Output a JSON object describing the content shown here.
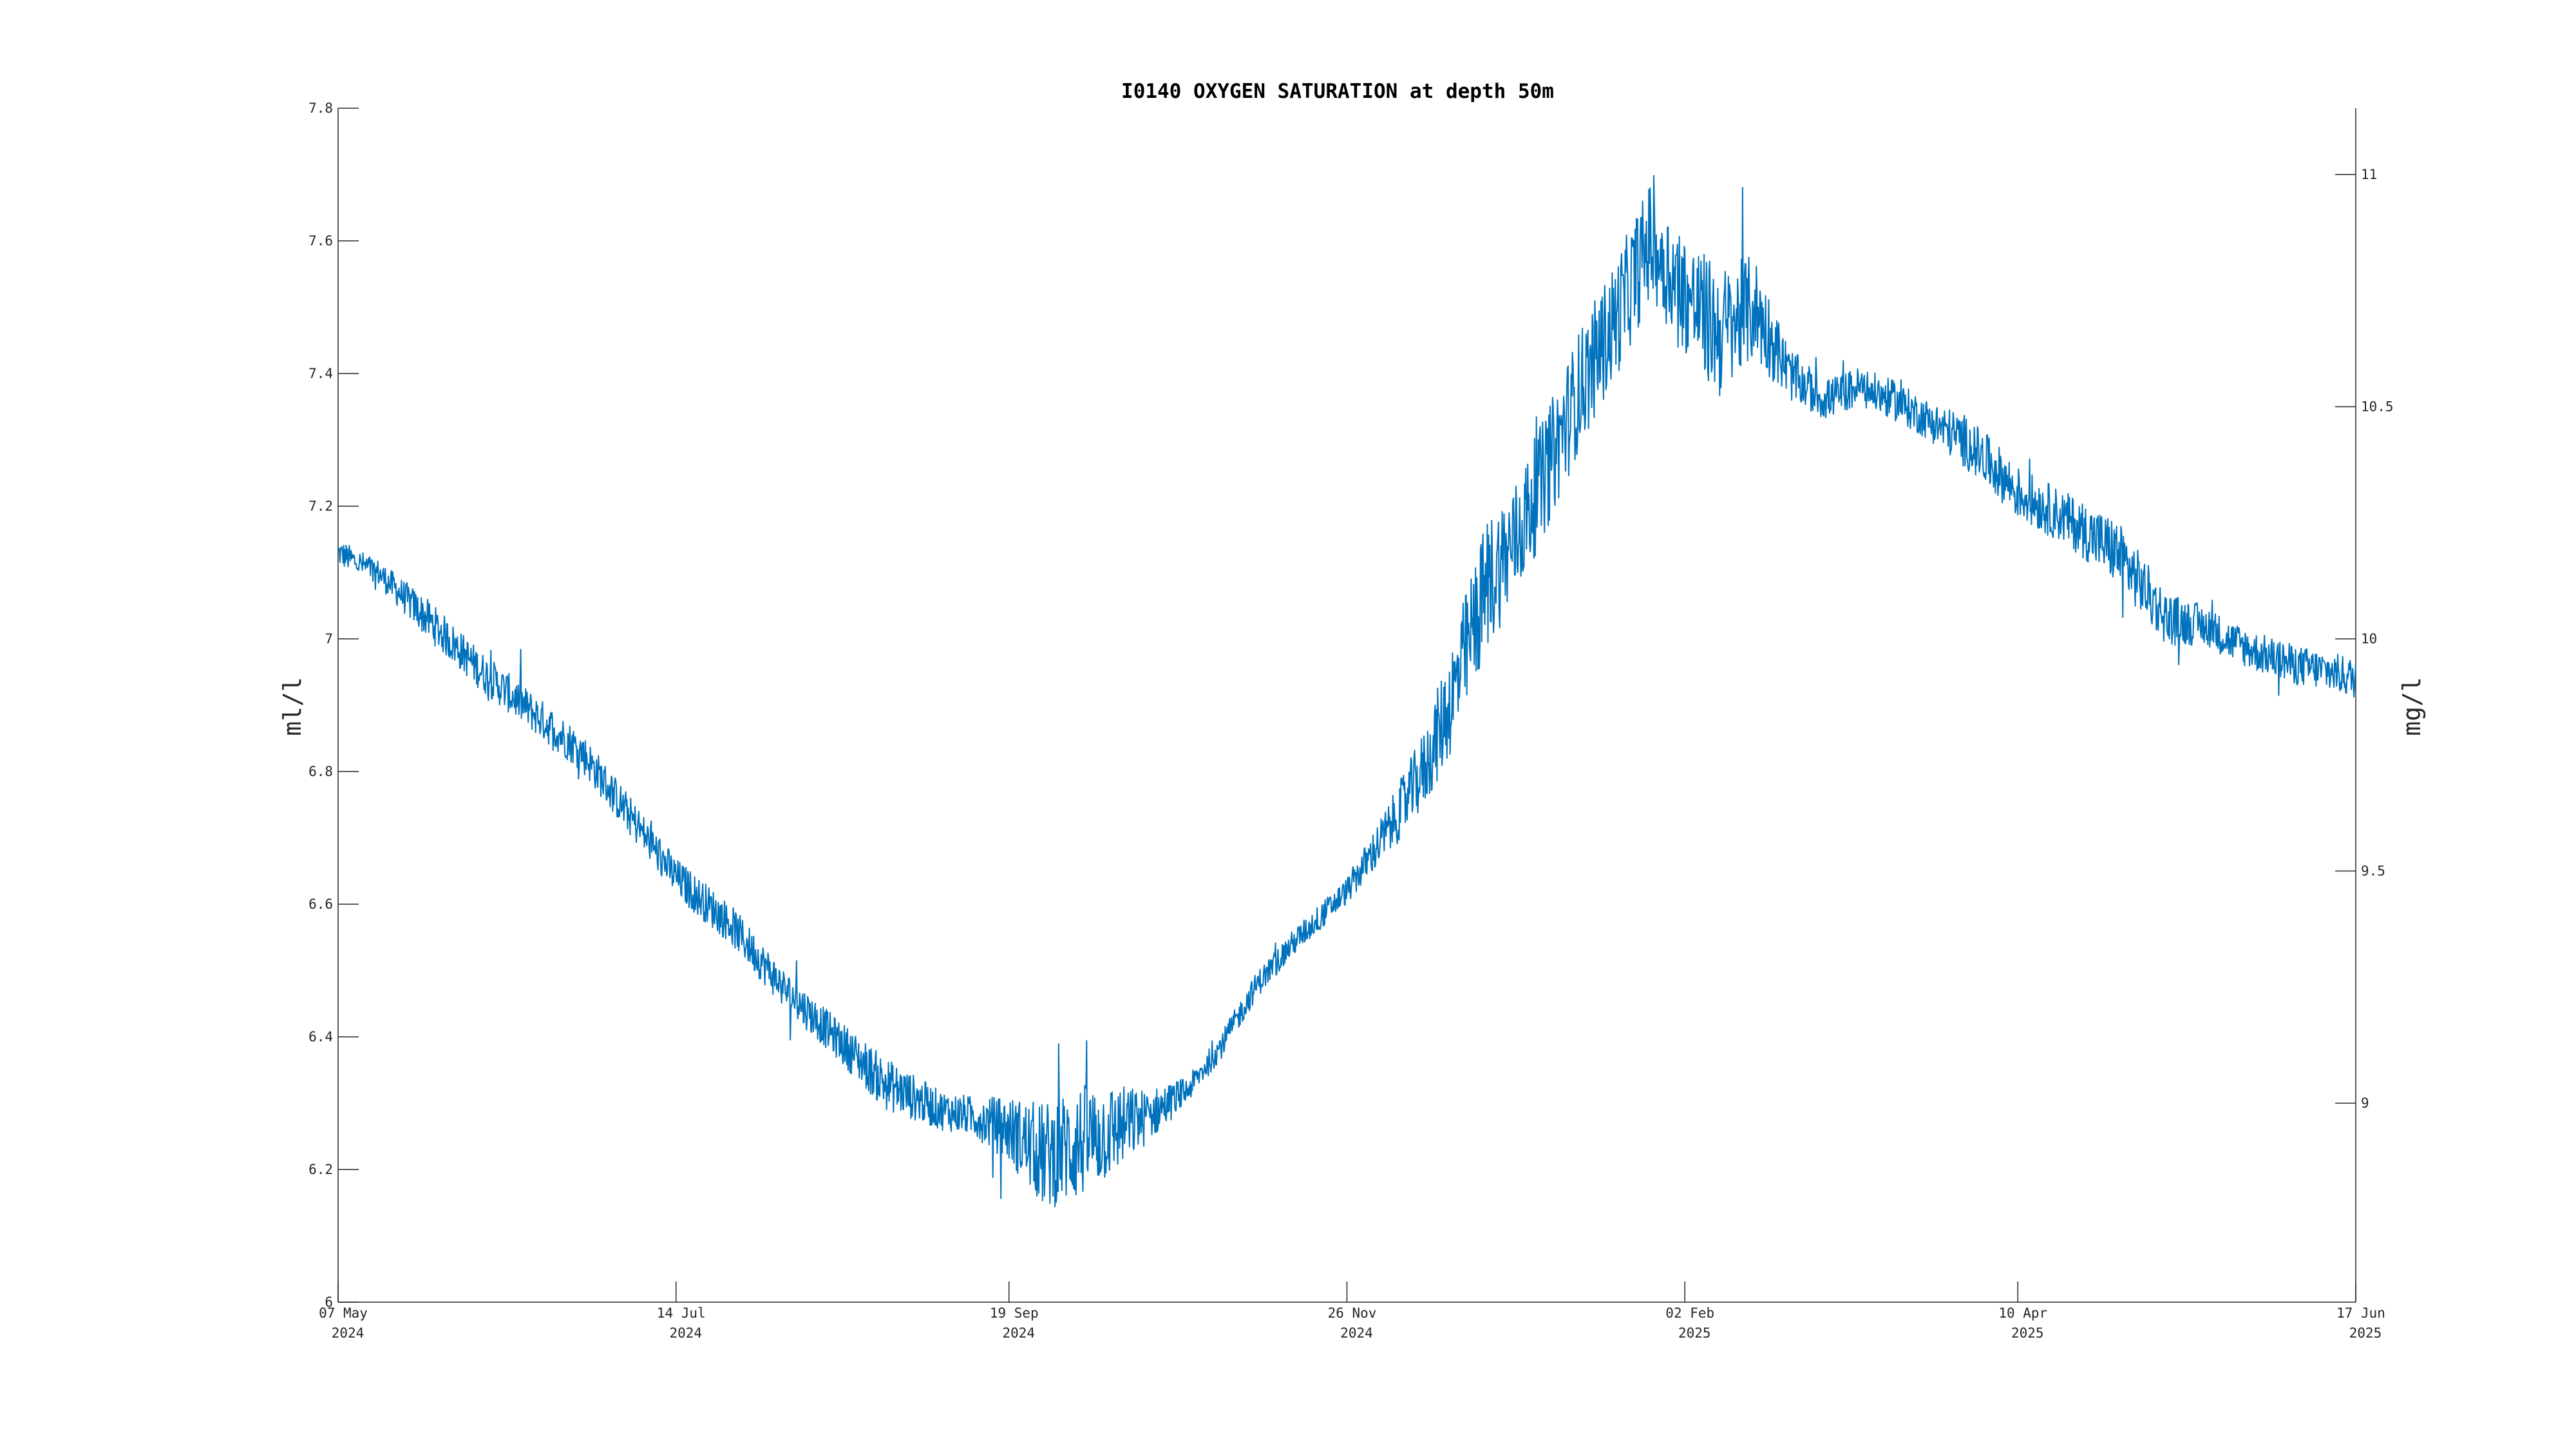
{
  "chart_data": {
    "type": "line",
    "title": "I0140 OXYGEN SATURATION at depth 50m",
    "ylabel": "ml/l",
    "ylabel_right": "mg/l",
    "xlabel": "",
    "grid": false,
    "legend": "none",
    "x_axis": {
      "type": "date",
      "range": [
        "2024-05-07",
        "2025-06-17"
      ],
      "ticks": [
        {
          "date": "2024-05-07",
          "line1": "07 May",
          "line2": "2024"
        },
        {
          "date": "2024-07-14",
          "line1": "14 Jul",
          "line2": "2024"
        },
        {
          "date": "2024-09-19",
          "line1": "19 Sep",
          "line2": "2024"
        },
        {
          "date": "2024-11-26",
          "line1": "26 Nov",
          "line2": "2024"
        },
        {
          "date": "2025-02-02",
          "line1": "02 Feb",
          "line2": "2025"
        },
        {
          "date": "2025-04-10",
          "line1": "10 Apr",
          "line2": "2025"
        },
        {
          "date": "2025-06-17",
          "line1": "17 Jun",
          "line2": "2025"
        }
      ]
    },
    "y_axis_left": {
      "range": [
        6,
        7.8
      ],
      "ticks": [
        {
          "value": 6,
          "label": "6"
        },
        {
          "value": 6.2,
          "label": "6.2"
        },
        {
          "value": 6.4,
          "label": "6.4"
        },
        {
          "value": 6.6,
          "label": "6.6"
        },
        {
          "value": 6.8,
          "label": "6.8"
        },
        {
          "value": 7,
          "label": "7"
        },
        {
          "value": 7.2,
          "label": "7.2"
        },
        {
          "value": 7.4,
          "label": "7.4"
        },
        {
          "value": 7.6,
          "label": "7.6"
        },
        {
          "value": 7.8,
          "label": "7.8"
        }
      ]
    },
    "y_axis_right": {
      "ticks": [
        {
          "value": 9,
          "label": "9",
          "left_equiv": 6.3
        },
        {
          "value": 9.5,
          "label": "9.5",
          "left_equiv": 6.65
        },
        {
          "value": 10,
          "label": "10",
          "left_equiv": 7.0
        },
        {
          "value": 10.5,
          "label": "10.5",
          "left_equiv": 7.35
        },
        {
          "value": 11,
          "label": "11",
          "left_equiv": 7.7
        }
      ]
    },
    "series": [
      {
        "color": "#0072BD",
        "x": [
          "2024-05-07",
          "2024-05-15",
          "2024-05-25",
          "2024-06-05",
          "2024-06-15",
          "2024-06-25",
          "2024-07-05",
          "2024-07-14",
          "2024-07-25",
          "2024-08-05",
          "2024-08-15",
          "2024-08-25",
          "2024-09-05",
          "2024-09-12",
          "2024-09-19",
          "2024-09-26",
          "2024-10-03",
          "2024-10-10",
          "2024-10-17",
          "2024-10-25",
          "2024-11-01",
          "2024-11-08",
          "2024-11-15",
          "2024-11-26",
          "2024-12-05",
          "2024-12-12",
          "2024-12-18",
          "2024-12-24",
          "2024-12-30",
          "2025-01-05",
          "2025-01-12",
          "2025-01-19",
          "2025-01-26",
          "2025-02-02",
          "2025-02-09",
          "2025-02-16",
          "2025-02-23",
          "2025-03-02",
          "2025-03-09",
          "2025-03-16",
          "2025-03-23",
          "2025-03-30",
          "2025-04-05",
          "2025-04-10",
          "2025-04-20",
          "2025-04-30",
          "2025-05-10",
          "2025-05-18",
          "2025-05-22",
          "2025-05-28",
          "2025-06-05",
          "2025-06-12",
          "2025-06-17"
        ],
        "y": [
          7.13,
          7.1,
          7.03,
          6.95,
          6.89,
          6.83,
          6.73,
          6.64,
          6.57,
          6.47,
          6.4,
          6.33,
          6.29,
          6.28,
          6.26,
          6.22,
          6.24,
          6.26,
          6.28,
          6.32,
          6.39,
          6.48,
          6.54,
          6.62,
          6.72,
          6.81,
          6.93,
          7.08,
          7.15,
          7.25,
          7.38,
          7.48,
          7.6,
          7.52,
          7.46,
          7.5,
          7.4,
          7.36,
          7.38,
          7.36,
          7.33,
          7.3,
          7.26,
          7.22,
          7.18,
          7.13,
          7.03,
          7.02,
          7.0,
          6.98,
          6.96,
          6.95,
          6.94
        ],
        "spread": [
          0.02,
          0.02,
          0.03,
          0.03,
          0.03,
          0.03,
          0.03,
          0.03,
          0.03,
          0.03,
          0.03,
          0.04,
          0.03,
          0.03,
          0.05,
          0.08,
          0.09,
          0.07,
          0.04,
          0.02,
          0.02,
          0.02,
          0.02,
          0.02,
          0.04,
          0.06,
          0.09,
          0.1,
          0.09,
          0.09,
          0.09,
          0.09,
          0.09,
          0.09,
          0.1,
          0.08,
          0.04,
          0.03,
          0.03,
          0.03,
          0.03,
          0.04,
          0.04,
          0.04,
          0.04,
          0.05,
          0.04,
          0.03,
          0.03,
          0.03,
          0.03,
          0.03,
          0.03
        ]
      }
    ]
  }
}
